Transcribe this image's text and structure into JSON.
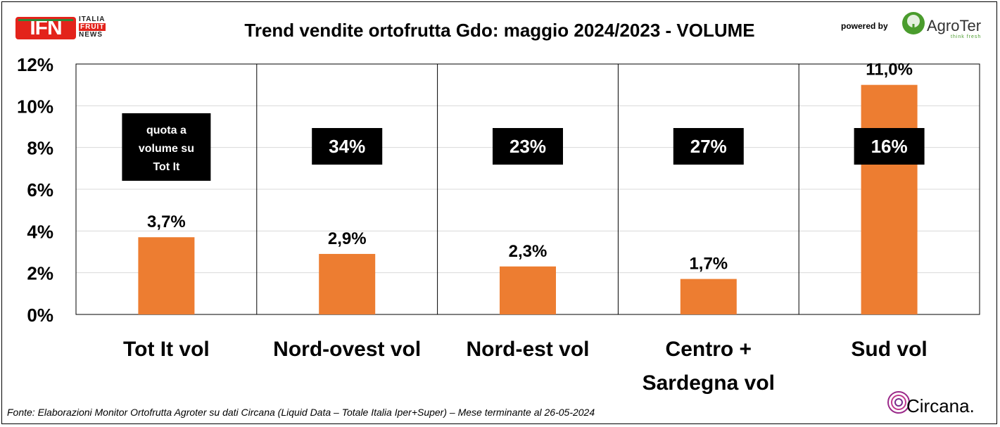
{
  "header": {
    "title": "Trend vendite ortofrutta Gdo: maggio 2024/2023 - VOLUME",
    "logo_ifn": {
      "main": "IFN",
      "line1": "ITALIA",
      "line2": "FRUIT",
      "line3": "NEWS"
    },
    "powered_by": "powered by",
    "agroter": {
      "name": "AgroTer",
      "tagline": "think fresh"
    }
  },
  "footer": {
    "source": "Fonte: Elaborazioni Monitor Ortofrutta Agroter su dati Circana (Liquid Data – Totale Italia Iper+Super) – Mese terminante al 26-05-2024",
    "circana": "Circana."
  },
  "colors": {
    "bar": "#ed7d31",
    "box": "#000000",
    "grid": "#d9d9d9",
    "text": "#000000"
  },
  "chart_data": {
    "type": "bar",
    "title": "Trend vendite ortofrutta Gdo: maggio 2024/2023 - VOLUME",
    "categories": [
      [
        "Tot It  vol"
      ],
      [
        "Nord-ovest vol"
      ],
      [
        "Nord-est vol"
      ],
      [
        "Centro +",
        "Sardegna vol"
      ],
      [
        "Sud vol"
      ]
    ],
    "values": [
      3.7,
      2.9,
      2.3,
      1.7,
      11.0
    ],
    "value_labels": [
      "3,7%",
      "2,9%",
      "2,3%",
      "1,7%",
      "11,0%"
    ],
    "annotations": [
      [
        "quota a",
        "volume su",
        "Tot It"
      ],
      [
        "34%"
      ],
      [
        "23%"
      ],
      [
        "27%"
      ],
      [
        "16%"
      ]
    ],
    "ylim": [
      0,
      12
    ],
    "yticks": [
      0,
      2,
      4,
      6,
      8,
      10,
      12
    ],
    "ytick_labels": [
      "0%",
      "2%",
      "4%",
      "6%",
      "8%",
      "10%",
      "12%"
    ],
    "grid": true,
    "legend": "none"
  }
}
